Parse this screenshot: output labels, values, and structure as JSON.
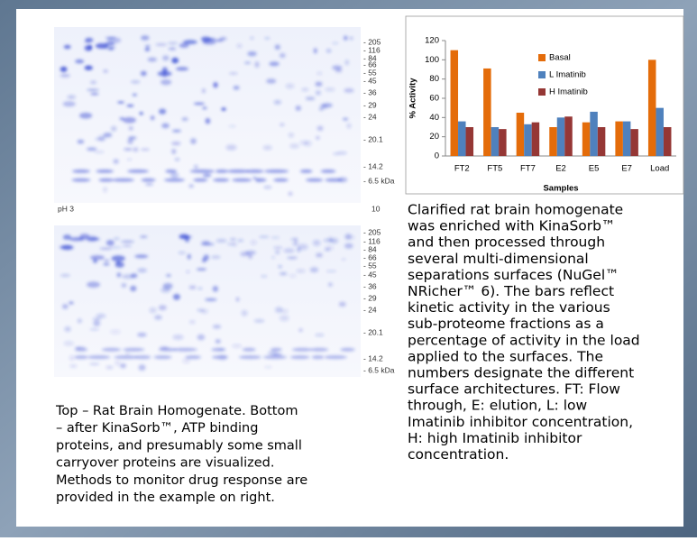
{
  "chart_data": {
    "type": "bar",
    "x_label": "Samples",
    "y_label": "% Activity",
    "categories": [
      "FT2",
      "FT5",
      "FT7",
      "E2",
      "E5",
      "E7",
      "Load"
    ],
    "series": [
      {
        "name": "Basal",
        "color": "#e46c0a",
        "values": [
          110,
          91,
          45,
          30,
          35,
          36,
          100
        ]
      },
      {
        "name": "L Imatinib",
        "color": "#4f81bd",
        "values": [
          36,
          30,
          33,
          40,
          46,
          36,
          50
        ]
      },
      {
        "name": "H Imatinib",
        "color": "#953735",
        "values": [
          30,
          28,
          35,
          41,
          30,
          28,
          30
        ]
      }
    ],
    "ylim": [
      0,
      120
    ],
    "yticks": [
      0,
      20,
      40,
      60,
      80,
      100,
      120
    ],
    "legend": "right"
  },
  "gels": {
    "top_markers": [
      "- 205",
      "- 116",
      "- 84",
      "- 66",
      "- 55",
      "- 45",
      "- 36",
      "- 29",
      "- 24",
      "- 20.1",
      "- 14.2",
      "- 6.5 kDa"
    ],
    "ph_low": "pH 3",
    "ph_high": "10",
    "bottom_markers": [
      "- 205",
      "- 116",
      "- 84",
      "- 66",
      "- 55",
      "- 45",
      "- 36",
      "- 29",
      "- 24",
      "- 20.1",
      "- 14.2",
      "- 6.5 kDa"
    ]
  },
  "left_caption": [
    "Top – Rat Brain Homogenate. Bottom",
    "– after KinaSorb™, ATP binding",
    "proteins, and presumably some small",
    "carryover proteins are visualized.",
    "Methods to monitor drug response are",
    "provided in the example on right."
  ],
  "right_text": [
    "Clarified rat brain homogenate",
    "was enriched with KinaSorb™",
    "and then processed through",
    "several multi-dimensional",
    "separations surfaces (NuGel™",
    "NRicher™ 6). The bars reflect",
    "kinetic activity in the various",
    "sub-proteome fractions as a",
    "percentage of activity in the load",
    "applied to the surfaces. The",
    "numbers designate the different",
    "surface architectures.  FT: Flow",
    "through, E: elution, L: low",
    "Imatinib inhibitor concentration,",
    "H: high Imatinib inhibitor",
    "concentration."
  ]
}
